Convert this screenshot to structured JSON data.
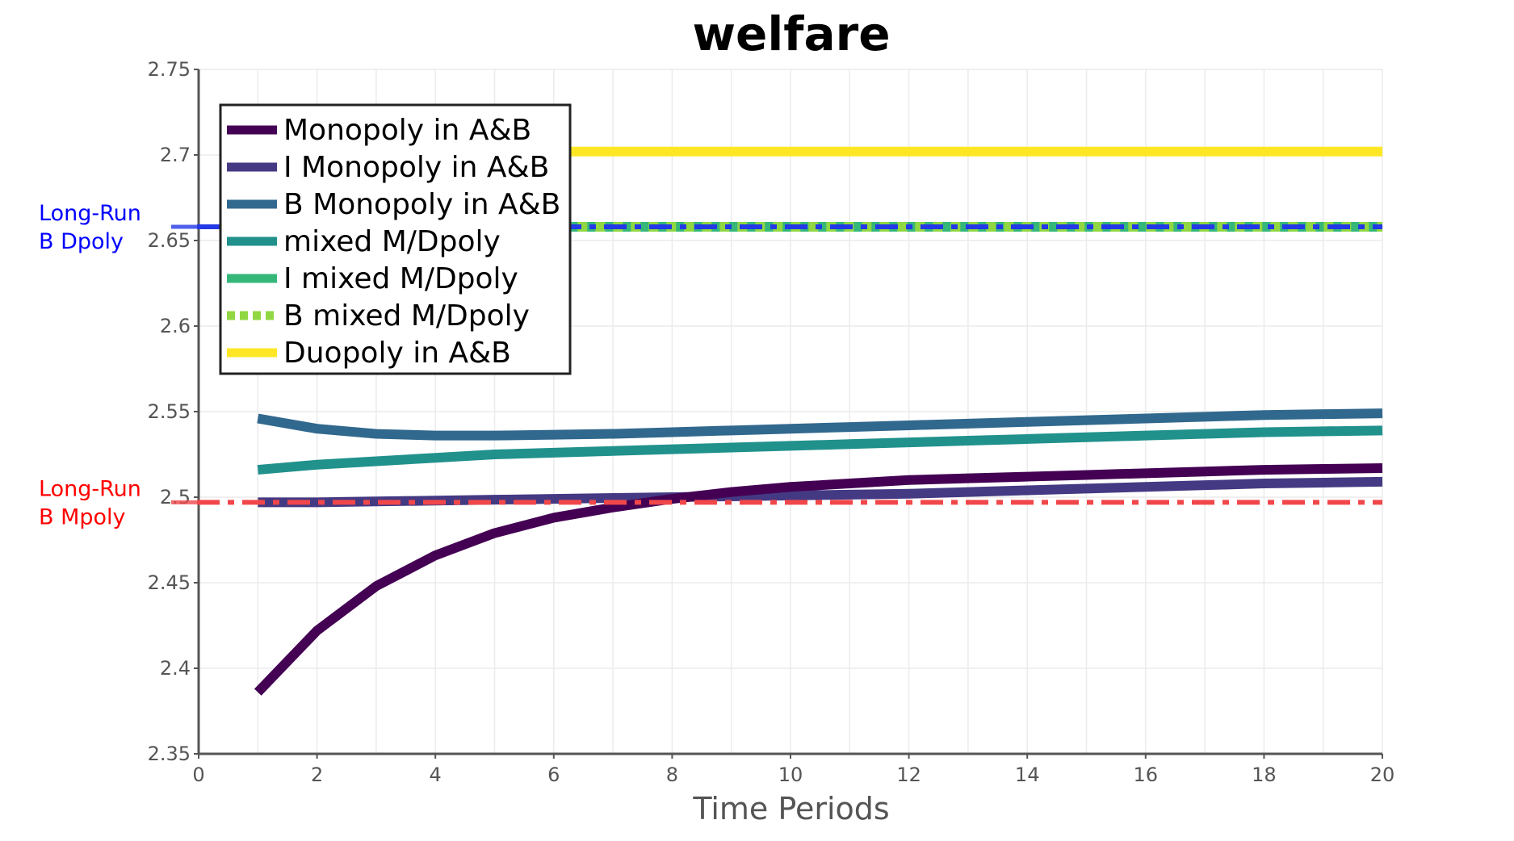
{
  "chart_data": {
    "type": "line",
    "title": "welfare",
    "xlabel": "Time Periods",
    "ylabel": "",
    "xlim": [
      0,
      20
    ],
    "ylim": [
      2.35,
      2.75
    ],
    "x_ticks": [
      "0",
      "2",
      "4",
      "6",
      "8",
      "10",
      "12",
      "14",
      "16",
      "18",
      "20"
    ],
    "y_ticks": [
      "2.35",
      "2.4",
      "2.45",
      "2.5",
      "2.55",
      "2.6",
      "2.65",
      "2.7",
      "2.75"
    ],
    "grid": true,
    "legend_placement": "top-left",
    "x": [
      1,
      2,
      3,
      4,
      5,
      6,
      7,
      8,
      9,
      10,
      11,
      12,
      13,
      14,
      15,
      16,
      17,
      18,
      19,
      20
    ],
    "series": [
      {
        "name": "Monopoly in A&B",
        "color": "#440154",
        "width": 12,
        "dash": "",
        "values": [
          2.386,
          2.422,
          2.448,
          2.466,
          2.479,
          2.488,
          2.494,
          2.499,
          2.503,
          2.506,
          2.508,
          2.51,
          2.511,
          2.512,
          2.513,
          2.514,
          2.515,
          2.516,
          2.5165,
          2.517
        ]
      },
      {
        "name": "I Monopoly in A&B",
        "color": "#443983",
        "width": 12,
        "dash": "",
        "values": [
          2.497,
          2.497,
          2.4975,
          2.498,
          2.4985,
          2.499,
          2.4995,
          2.5,
          2.5005,
          2.501,
          2.5015,
          2.502,
          2.503,
          2.504,
          2.505,
          2.506,
          2.507,
          2.508,
          2.5085,
          2.509
        ]
      },
      {
        "name": "B Monopoly in A&B",
        "color": "#31688e",
        "width": 12,
        "dash": "",
        "values": [
          2.546,
          2.54,
          2.537,
          2.536,
          2.536,
          2.5365,
          2.537,
          2.538,
          2.539,
          2.54,
          2.541,
          2.542,
          2.543,
          2.544,
          2.545,
          2.546,
          2.547,
          2.548,
          2.5485,
          2.549
        ]
      },
      {
        "name": "mixed M/Dpoly",
        "color": "#21918c",
        "width": 12,
        "dash": "",
        "values": [
          2.516,
          2.519,
          2.521,
          2.523,
          2.525,
          2.526,
          2.527,
          2.528,
          2.529,
          2.53,
          2.531,
          2.532,
          2.533,
          2.534,
          2.535,
          2.536,
          2.537,
          2.538,
          2.5385,
          2.539
        ]
      },
      {
        "name": "I mixed M/Dpoly",
        "color": "#35b779",
        "width": 12,
        "dash": "",
        "values": [
          2.658,
          2.658,
          2.658,
          2.658,
          2.658,
          2.658,
          2.658,
          2.658,
          2.658,
          2.658,
          2.658,
          2.658,
          2.658,
          2.658,
          2.658,
          2.658,
          2.658,
          2.658,
          2.658,
          2.658
        ]
      },
      {
        "name": "B mixed M/Dpoly",
        "color": "#90d743",
        "width": 12,
        "dash": "12,10",
        "values": [
          2.658,
          2.658,
          2.658,
          2.658,
          2.658,
          2.658,
          2.658,
          2.658,
          2.658,
          2.658,
          2.658,
          2.658,
          2.658,
          2.658,
          2.658,
          2.658,
          2.658,
          2.658,
          2.658,
          2.658
        ]
      },
      {
        "name": "Duopoly in A&B",
        "color": "#fde725",
        "width": 12,
        "dash": "",
        "values": [
          2.702,
          2.702,
          2.702,
          2.702,
          2.702,
          2.702,
          2.702,
          2.702,
          2.702,
          2.702,
          2.702,
          2.702,
          2.702,
          2.702,
          2.702,
          2.702,
          2.702,
          2.702,
          2.702,
          2.702
        ]
      }
    ],
    "reference_lines": [
      {
        "label_line1": "Long-Run",
        "label_line2": "B Dpoly",
        "y": 2.658,
        "color": "#2338e6",
        "label_color": "#0000ff",
        "dash": "28,10,8,10",
        "width": 6
      },
      {
        "label_line1": "Long-Run",
        "label_line2": "B Mpoly",
        "y": 2.497,
        "color": "#f0474a",
        "label_color": "#ff0000",
        "dash": "28,10,8,10",
        "width": 6
      }
    ]
  }
}
